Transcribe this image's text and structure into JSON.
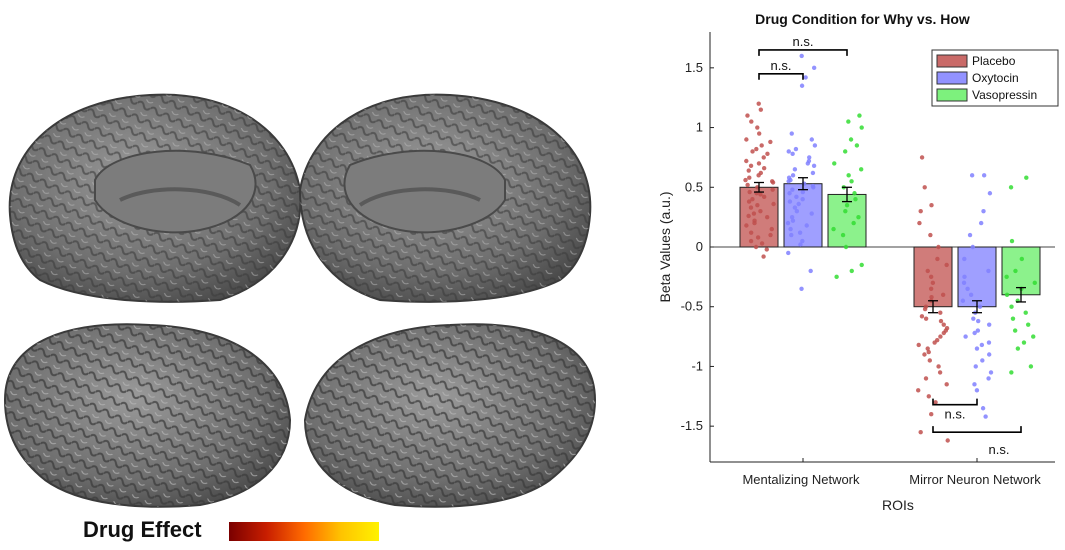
{
  "brain": {
    "legend_label": "Drug Effect",
    "colorbar_colors": [
      "#7a0000",
      "#c81e00",
      "#ff6a00",
      "#ffc400",
      "#fff200"
    ]
  },
  "chart_data": {
    "type": "bar",
    "title": "Drug Condition for Why vs. How",
    "xlabel": "ROIs",
    "ylabel": "Beta Values (a.u.)",
    "ylim": [
      -1.8,
      1.8
    ],
    "yticks": [
      -1.5,
      -1,
      -0.5,
      0,
      0.5,
      1,
      1.5
    ],
    "ytick_labels": [
      "-1.5",
      "-1",
      "-0.5",
      "0",
      "0.5",
      "1",
      "1.5"
    ],
    "categories": [
      "Mentalizing Network",
      "Mirror Neuron Network"
    ],
    "legend_position": "top-right",
    "series": [
      {
        "name": "Placebo",
        "color": "#c0504d",
        "point_color": "#c0504d",
        "values": [
          0.5,
          -0.5
        ],
        "errors": [
          0.04,
          0.05
        ]
      },
      {
        "name": "Oxytocin",
        "color": "#7f7fff",
        "point_color": "#8080ff",
        "values": [
          0.53,
          -0.5
        ],
        "errors": [
          0.05,
          0.05
        ]
      },
      {
        "name": "Vasopressin",
        "color": "#66ee66",
        "point_color": "#33dd33",
        "values": [
          0.44,
          -0.4
        ],
        "errors": [
          0.06,
          0.06
        ]
      }
    ],
    "significance": [
      {
        "label": "n.s.",
        "category": 0,
        "from": 0,
        "to": 1,
        "y": 1.45,
        "side": "above"
      },
      {
        "label": "n.s.",
        "category": 0,
        "from": 0,
        "to": 2,
        "y": 1.65,
        "side": "above"
      },
      {
        "label": "n.s.",
        "category": 1,
        "from": 0,
        "to": 1,
        "y": -1.32,
        "side": "below"
      },
      {
        "label": "n.s.",
        "category": 1,
        "from": 0,
        "to": 2,
        "y": -1.55,
        "side": "below"
      }
    ],
    "points": [
      [
        [
          1.2,
          1.15,
          1.1,
          1.05,
          1.0,
          0.95,
          0.9,
          0.88,
          0.85,
          0.82,
          0.8,
          0.78,
          0.75,
          0.72,
          0.7,
          0.68,
          0.66,
          0.64,
          0.62,
          0.6,
          0.58,
          0.56,
          0.55,
          0.54,
          0.52,
          0.5,
          0.48,
          0.46,
          0.45,
          0.44,
          0.42,
          0.4,
          0.38,
          0.36,
          0.35,
          0.33,
          0.3,
          0.28,
          0.26,
          0.25,
          0.22,
          0.2,
          0.18,
          0.15,
          0.12,
          0.1,
          0.08,
          0.05,
          0.03,
          0.0,
          -0.02,
          -0.08
        ],
        [
          1.6,
          1.5,
          1.42,
          1.35,
          0.95,
          0.9,
          0.85,
          0.82,
          0.8,
          0.78,
          0.75,
          0.72,
          0.7,
          0.68,
          0.65,
          0.62,
          0.6,
          0.58,
          0.56,
          0.55,
          0.53,
          0.51,
          0.5,
          0.48,
          0.46,
          0.45,
          0.42,
          0.4,
          0.38,
          0.36,
          0.33,
          0.3,
          0.28,
          0.25,
          0.22,
          0.2,
          0.18,
          0.15,
          0.12,
          0.1,
          0.05,
          0.02,
          -0.05,
          -0.2,
          -0.35
        ],
        [
          1.1,
          1.05,
          1.0,
          0.9,
          0.85,
          0.8,
          0.7,
          0.65,
          0.6,
          0.55,
          0.5,
          0.45,
          0.4,
          0.35,
          0.3,
          0.25,
          0.2,
          0.15,
          0.1,
          0.0,
          -0.15,
          -0.2,
          -0.25
        ]
      ],
      [
        [
          0.75,
          0.5,
          0.35,
          0.3,
          0.2,
          0.1,
          0.0,
          -0.1,
          -0.15,
          -0.2,
          -0.25,
          -0.3,
          -0.35,
          -0.4,
          -0.42,
          -0.45,
          -0.5,
          -0.52,
          -0.55,
          -0.58,
          -0.6,
          -0.62,
          -0.65,
          -0.68,
          -0.7,
          -0.72,
          -0.75,
          -0.78,
          -0.8,
          -0.82,
          -0.85,
          -0.88,
          -0.9,
          -0.95,
          -1.0,
          -1.05,
          -1.1,
          -1.15,
          -1.2,
          -1.25,
          -1.3,
          -1.4,
          -1.55,
          -1.62
        ],
        [
          0.6,
          0.6,
          0.45,
          0.3,
          0.2,
          0.1,
          0.0,
          -0.1,
          -0.2,
          -0.25,
          -0.3,
          -0.35,
          -0.4,
          -0.45,
          -0.5,
          -0.55,
          -0.6,
          -0.62,
          -0.65,
          -0.7,
          -0.72,
          -0.75,
          -0.8,
          -0.82,
          -0.85,
          -0.9,
          -0.95,
          -1.0,
          -1.05,
          -1.1,
          -1.15,
          -1.2,
          -1.35,
          -1.42
        ],
        [
          0.58,
          0.5,
          0.05,
          -0.1,
          -0.2,
          -0.25,
          -0.3,
          -0.35,
          -0.4,
          -0.45,
          -0.5,
          -0.55,
          -0.6,
          -0.65,
          -0.7,
          -0.75,
          -0.8,
          -0.85,
          -1.0,
          -1.05
        ]
      ]
    ]
  }
}
